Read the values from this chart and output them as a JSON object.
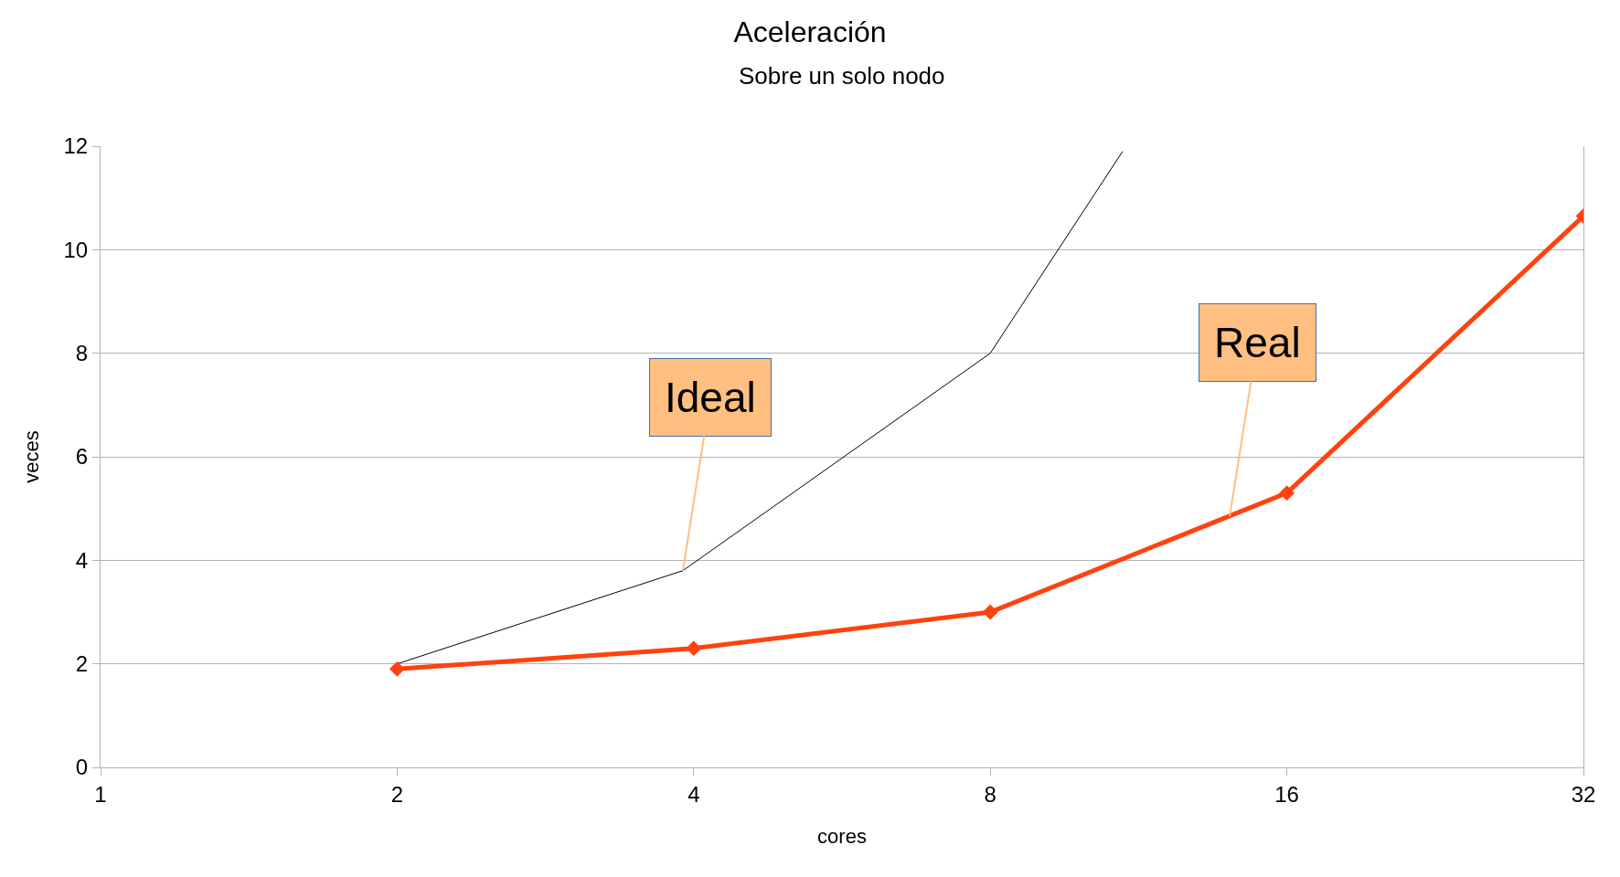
{
  "chart_data": {
    "type": "line",
    "title": "Aceleración",
    "subtitle": "Sobre un solo nodo",
    "xlabel": "cores",
    "ylabel": "veces",
    "log": "x",
    "xlim": [
      1,
      32
    ],
    "xticks": [
      1,
      2,
      4,
      8,
      16,
      32
    ],
    "ylim": [
      0,
      12
    ],
    "yticks": [
      0,
      2,
      4,
      6,
      8,
      10,
      12
    ],
    "grid": "y",
    "series": [
      {
        "color": "#000000",
        "x": [
          2,
          3.9,
          8,
          10.9
        ],
        "values": [
          2,
          3.8,
          8,
          11.9
        ],
        "marker": "none"
      },
      {
        "color": "#ff420e",
        "x": [
          2,
          4,
          8,
          16,
          32
        ],
        "values": [
          1.9,
          2.3,
          3,
          5.3,
          10.65
        ],
        "marker": "diamond"
      }
    ],
    "annotations": [
      {
        "text": "Ideal",
        "x": 3.9,
        "y": 3.8
      },
      {
        "text": "Real",
        "x": 14,
        "y": 4.85
      }
    ]
  }
}
